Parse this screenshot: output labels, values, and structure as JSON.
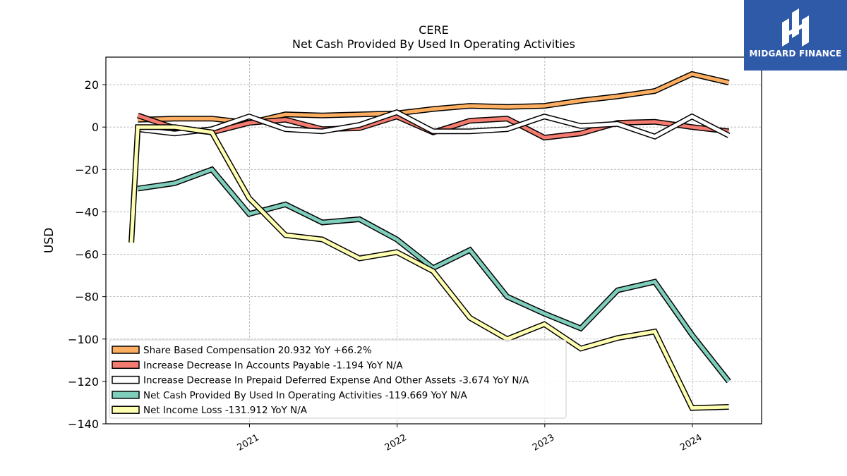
{
  "brand": {
    "name": "MIDGARD FINANCE",
    "bg_color": "#2f5aa8"
  },
  "chart_data": {
    "type": "line",
    "title": "CERE",
    "subtitle": "Net Cash Provided By Used In Operating Activities",
    "xlabel": "",
    "ylabel": "USD",
    "x_ticks": [
      "2021",
      "2022",
      "2023",
      "2024"
    ],
    "y_ticks": [
      20,
      0,
      -20,
      -40,
      -60,
      -80,
      -100,
      -120,
      -140
    ],
    "ylim": [
      -140,
      33
    ],
    "xlim": [
      "2020-01-12",
      "2024-06-20"
    ],
    "grid": true,
    "legend_position": "lower-left",
    "series": [
      {
        "name": "Share Based Compensation",
        "legend": "Share Based Compensation  20.932 YoY +66.2%",
        "color": "#fdae61",
        "x": [
          "2020-03-31",
          "2020-06-30",
          "2020-09-30",
          "2020-12-31",
          "2021-03-31",
          "2021-06-30",
          "2021-09-30",
          "2021-12-31",
          "2022-03-31",
          "2022-06-30",
          "2022-09-30",
          "2022-12-31",
          "2023-03-31",
          "2023-06-30",
          "2023-09-30",
          "2023-12-31",
          "2024-03-31"
        ],
        "values": [
          3.5,
          4,
          4,
          2,
          6,
          5.5,
          6,
          6.5,
          8.5,
          10,
          9.5,
          10,
          12.5,
          14.5,
          17,
          25,
          21
        ]
      },
      {
        "name": "Increase Decrease In Accounts Payable",
        "legend": "Increase Decrease In Accounts Payable  -1.194 YoY N/A",
        "color": "#f47b6f",
        "x": [
          "2020-03-31",
          "2020-06-30",
          "2020-09-30",
          "2020-12-31",
          "2021-03-31",
          "2021-06-30",
          "2021-09-30",
          "2021-12-31",
          "2022-03-31",
          "2022-06-30",
          "2022-09-30",
          "2022-12-31",
          "2023-03-31",
          "2023-06-30",
          "2023-09-30",
          "2023-12-31",
          "2024-03-31"
        ],
        "values": [
          5.5,
          -0.5,
          -2.5,
          2,
          3.5,
          -1,
          -0.5,
          5,
          -2.5,
          3,
          4,
          -5,
          -3,
          2,
          2.5,
          0,
          -2
        ]
      },
      {
        "name": "Increase Decrease In Prepaid Deferred Expense And Other Assets",
        "legend": "Increase Decrease In Prepaid Deferred Expense And Other Assets  -3.674 YoY N/A",
        "color": "#ffffff",
        "x": [
          "2020-03-31",
          "2020-06-30",
          "2020-09-30",
          "2020-12-31",
          "2021-03-31",
          "2021-06-30",
          "2021-09-30",
          "2021-12-31",
          "2022-03-31",
          "2022-06-30",
          "2022-09-30",
          "2022-12-31",
          "2023-03-31",
          "2023-06-30",
          "2023-09-30",
          "2023-12-31",
          "2024-03-31"
        ],
        "values": [
          -1,
          -3,
          -1,
          5,
          -1,
          -2,
          1,
          7,
          -2,
          -2,
          -1,
          5,
          0.5,
          1.5,
          -4.5,
          5,
          -4
        ]
      },
      {
        "name": "Net Cash Provided By Used In Operating Activities",
        "legend": "Net Cash Provided By Used In Operating Activities  -119.669 YoY N/A",
        "color": "#7fcdbb",
        "x": [
          "2020-03-31",
          "2020-06-30",
          "2020-09-30",
          "2020-12-31",
          "2021-03-31",
          "2021-06-30",
          "2021-09-30",
          "2021-12-31",
          "2022-03-31",
          "2022-06-30",
          "2022-09-30",
          "2022-12-31",
          "2023-03-31",
          "2023-06-30",
          "2023-09-30",
          "2023-12-31",
          "2024-03-31"
        ],
        "values": [
          -29,
          -26.5,
          -20,
          -41,
          -36.5,
          -45,
          -43.5,
          -53,
          -66.5,
          -58,
          -80,
          -88,
          -95,
          -77,
          -73,
          -98,
          -120
        ]
      },
      {
        "name": "Net Income Loss",
        "legend": "Net Income Loss  -131.912 YoY N/A",
        "color": "#ffffb2",
        "x": [
          "2020-03-15",
          "2020-03-31",
          "2020-06-30",
          "2020-09-30",
          "2020-12-31",
          "2021-03-31",
          "2021-06-30",
          "2021-09-30",
          "2021-12-31",
          "2022-03-31",
          "2022-06-30",
          "2022-09-30",
          "2022-12-31",
          "2023-03-31",
          "2023-06-30",
          "2023-09-30",
          "2023-12-31",
          "2024-03-31"
        ],
        "values": [
          -54.5,
          0,
          0,
          -2.5,
          -33.5,
          -51,
          -53,
          -62,
          -59,
          -68,
          -90,
          -100,
          -93,
          -104.5,
          -99.5,
          -96.5,
          -132.5,
          -132
        ]
      }
    ]
  }
}
